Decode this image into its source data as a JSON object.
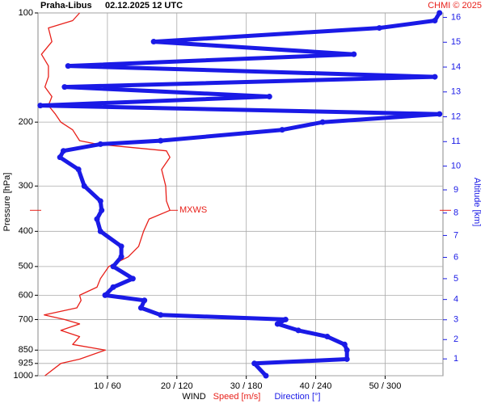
{
  "chart_data": {
    "type": "line",
    "title": "Praha-Libus",
    "subtitle": "02.12.2025 12 UTC",
    "credit": "CHMI © 2025",
    "ylabel": "Pressure [hPa]",
    "y2label": "Altitude [km]",
    "xlabel": "WIND",
    "log_y": true,
    "grid": true,
    "y": [
      1000,
      925,
      900,
      850,
      820,
      780,
      750,
      720,
      700,
      680,
      650,
      620,
      600,
      570,
      540,
      500,
      470,
      440,
      400,
      370,
      350,
      330,
      300,
      270,
      250,
      240,
      230,
      225,
      210,
      200,
      190,
      180,
      170,
      160,
      150,
      140,
      130,
      120,
      110,
      105,
      100
    ],
    "ylim": [
      1000,
      100
    ],
    "yticks": [
      100,
      200,
      300,
      400,
      500,
      600,
      700,
      850,
      925,
      1000
    ],
    "xlim": [
      0,
      58.33
    ],
    "xticks": [
      {
        "value": 10,
        "label": "10 / 60"
      },
      {
        "value": 20,
        "label": "20 / 120"
      },
      {
        "value": 30,
        "label": "30 / 180"
      },
      {
        "value": 40,
        "label": "40 / 240"
      },
      {
        "value": 50,
        "label": "50 / 300"
      }
    ],
    "x2lim": [
      0,
      350
    ],
    "y2ticks": [
      1,
      2,
      3,
      4,
      5,
      6,
      7,
      8,
      9,
      10,
      11,
      12,
      13,
      14,
      15,
      16
    ],
    "series": [
      {
        "name": "Speed [m/s]",
        "color": "#e8201a",
        "axis": "x",
        "values": [
          1,
          3.3,
          6,
          9.7,
          5,
          6,
          3.3,
          6,
          3.8,
          0.9,
          5.6,
          6.2,
          6,
          8.5,
          9,
          10.2,
          13,
          14.5,
          15.2,
          16,
          19,
          18.5,
          18.4,
          17.8,
          19,
          18.5,
          8.5,
          6,
          5,
          3.3,
          2.5,
          1.5,
          2,
          1,
          1.5,
          1.5,
          0.5,
          2,
          1.5,
          5,
          6
        ]
      },
      {
        "name": "Direction [°]",
        "color": "#1a1ae6",
        "axis": "x2",
        "values": [
          197,
          187,
          267,
          267,
          265,
          250,
          225,
          207,
          214,
          106,
          89,
          92,
          58,
          65,
          82,
          65,
          72,
          72,
          54,
          51,
          55,
          54,
          40,
          35,
          19,
          22,
          54,
          106,
          211,
          246,
          347,
          2,
          200,
          23,
          343,
          26,
          273,
          100,
          295,
          343,
          347
        ]
      }
    ],
    "mxws": {
      "label": "MXWS",
      "pressure": 350
    }
  }
}
